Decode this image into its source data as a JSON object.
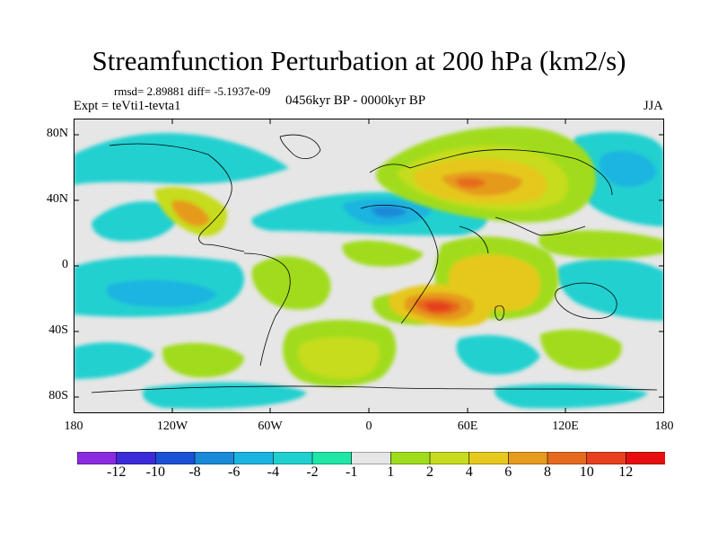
{
  "title": "Streamfunction Perturbation at 200 hPa (km2/s)",
  "stats": "rmsd= 2.89881 diff= -5.1937e-09",
  "experiment": "Expt = teVti1-tevta1",
  "period": "0456kyr BP - 0000kyr BP",
  "season": "JJA",
  "map": {
    "variable": "Streamfunction Perturbation",
    "level": "200 hPa",
    "units": "km2/s",
    "lat_range": [
      -90,
      90
    ],
    "lon_range": [
      -180,
      180
    ],
    "y_ticks": [
      {
        "label": "80N",
        "value": 80
      },
      {
        "label": "40N",
        "value": 40
      },
      {
        "label": "0",
        "value": 0
      },
      {
        "label": "40S",
        "value": -40
      },
      {
        "label": "80S",
        "value": -80
      }
    ],
    "x_ticks": [
      {
        "label": "180",
        "value": -180
      },
      {
        "label": "120W",
        "value": -120
      },
      {
        "label": "60W",
        "value": -60
      },
      {
        "label": "0",
        "value": 0
      },
      {
        "label": "60E",
        "value": 60
      },
      {
        "label": "120E",
        "value": 120
      },
      {
        "label": "180",
        "value": 180
      }
    ],
    "features": [
      {
        "name": "north-atlantic-eurasia-high",
        "lon": 45,
        "lat": 52,
        "value": 7
      },
      {
        "name": "southern-africa-high",
        "lon": 45,
        "lat": -28,
        "value": 12
      },
      {
        "name": "central-america-high",
        "lon": -105,
        "lat": 28,
        "value": 5
      },
      {
        "name": "north-africa-low",
        "lon": 8,
        "lat": 30,
        "value": -5
      },
      {
        "name": "south-pacific-low",
        "lon": -140,
        "lat": -22,
        "value": -6
      },
      {
        "name": "north-pacific-low",
        "lon": 165,
        "lat": 45,
        "value": -4
      }
    ]
  },
  "colorbar": {
    "labels": [
      "-12",
      "-10",
      "-8",
      "-6",
      "-4",
      "-2",
      "-1",
      "1",
      "2",
      "4",
      "6",
      "8",
      "10",
      "12"
    ],
    "colors": [
      "#8a2be2",
      "#3b2bd8",
      "#1a52d6",
      "#1a8ad8",
      "#1ab4e0",
      "#20d0d0",
      "#20e6a6",
      "#e6e6e6",
      "#a0dc1e",
      "#c6dc1e",
      "#e6c81e",
      "#e69a1e",
      "#e66a1e",
      "#e6401e",
      "#e60e0e"
    ]
  }
}
